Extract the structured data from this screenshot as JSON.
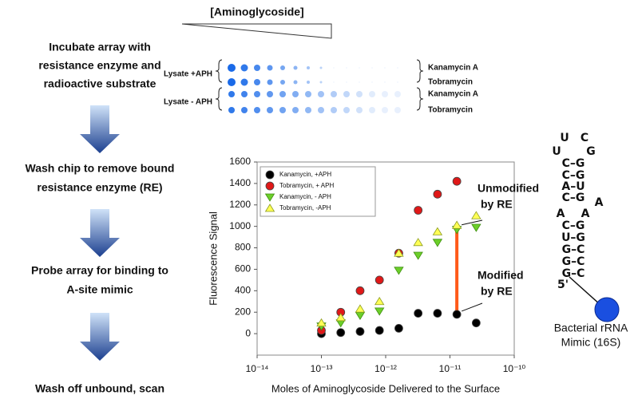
{
  "steps": [
    {
      "lines": [
        "Incubate array with",
        "resistance enzyme and",
        "radioactive substrate"
      ]
    },
    {
      "lines": [
        "Wash chip to remove bound",
        "resistance enzyme (RE)"
      ]
    },
    {
      "lines": [
        "Probe array for binding to",
        "A-site mimic"
      ]
    },
    {
      "lines": [
        "Wash off unbound, scan"
      ]
    }
  ],
  "array": {
    "title": "[Aminoglycoside]",
    "groups": [
      {
        "label": "Lysate +APH",
        "rows": [
          "Kanamycin A",
          "Tobramycin"
        ]
      },
      {
        "label": "Lysate - APH",
        "rows": [
          "Kanamycin A",
          "Tobramycin"
        ]
      }
    ]
  },
  "rna": {
    "letters": [
      "U",
      "C",
      "U",
      "G",
      "C–G",
      "C–G",
      "A–U",
      "C–G",
      "A",
      "A",
      "A",
      "C–G",
      "U–G",
      "G–C",
      "G–C",
      "G–C",
      "5'"
    ],
    "label": [
      "Bacterial rRNA",
      "Mimic (16S)"
    ]
  },
  "chart_data": {
    "type": "scatter",
    "xlabel": "Moles of Aminoglycoside Delivered to the Surface",
    "ylabel": "Fluorescence Signal",
    "xscale": "log",
    "xlim": [
      1e-14,
      1e-10
    ],
    "xticks": [
      {
        "value": 1e-14,
        "label": "10⁻¹⁴"
      },
      {
        "value": 1e-13,
        "label": "10⁻¹³"
      },
      {
        "value": 1e-12,
        "label": "10⁻¹²"
      },
      {
        "value": 1e-11,
        "label": "10⁻¹¹"
      },
      {
        "value": 1e-10,
        "label": "10⁻¹⁰"
      }
    ],
    "ylim": [
      -200,
      1600
    ],
    "yticks": [
      0,
      200,
      400,
      600,
      800,
      1000,
      1200,
      1400,
      1600
    ],
    "legend": "upper left",
    "x": [
      1e-13,
      2e-13,
      4e-13,
      8e-13,
      1.6e-12,
      3.2e-12,
      6.4e-12,
      1.28e-11,
      2.56e-11
    ],
    "series": [
      {
        "name": "Kanamycin, +APH",
        "color": "#000000",
        "marker": "circle",
        "values": [
          0,
          10,
          20,
          30,
          50,
          190,
          190,
          180,
          100
        ]
      },
      {
        "name": "Tobramycin, + APH",
        "color": "#e01818",
        "marker": "circle",
        "values": [
          30,
          200,
          400,
          500,
          750,
          1150,
          1300,
          1420,
          null
        ]
      },
      {
        "name": "Kanamycin, - APH",
        "color": "#6ccf2a",
        "marker": "triangle-down",
        "values": [
          70,
          100,
          170,
          210,
          590,
          730,
          850,
          970,
          990
        ]
      },
      {
        "name": "Tobramycin, -APH",
        "color": "#ffff55",
        "marker": "triangle-up",
        "values": [
          100,
          150,
          230,
          300,
          750,
          850,
          950,
          1010,
          1100
        ]
      }
    ],
    "annotations": [
      {
        "lines": [
          "Unmodified",
          "by RE"
        ]
      },
      {
        "lines": [
          "Modified",
          "by RE"
        ]
      }
    ]
  }
}
